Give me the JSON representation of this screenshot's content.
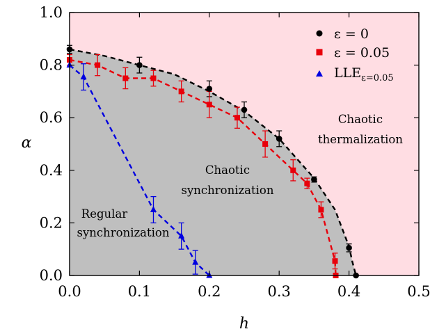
{
  "chart_data": {
    "type": "scatter",
    "xlabel": "h",
    "ylabel": "α",
    "xlim": [
      0.0,
      0.5
    ],
    "ylim": [
      0.0,
      1.0
    ],
    "xticks": [
      "0.0",
      "0.1",
      "0.2",
      "0.3",
      "0.4",
      "0.5"
    ],
    "yticks": [
      "0.0",
      "0.2",
      "0.4",
      "0.6",
      "0.8",
      "1.0"
    ],
    "grid": false,
    "legend_position": "top-right",
    "regions": [
      {
        "name": "chaotic-thermalization",
        "label": [
          "Chaotic",
          "thermalization"
        ],
        "color": "#ffdde3"
      },
      {
        "name": "chaotic-synchronization",
        "label": [
          "Chaotic",
          "synchronization"
        ],
        "color": "#bfbfbf"
      },
      {
        "name": "regular-synchronization",
        "label": [
          "Regular",
          "synchronization"
        ]
      }
    ],
    "boundary_curve": {
      "x": [
        0.0,
        0.05,
        0.1,
        0.15,
        0.2,
        0.25,
        0.3,
        0.35,
        0.38,
        0.4,
        0.405,
        0.41
      ],
      "y": [
        0.86,
        0.835,
        0.8,
        0.765,
        0.7,
        0.625,
        0.52,
        0.37,
        0.25,
        0.11,
        0.05,
        0.0
      ]
    },
    "series": [
      {
        "name": "ε = 0",
        "color": "#000000",
        "marker": "circle",
        "x": [
          0.0,
          0.1,
          0.2,
          0.25,
          0.3,
          0.35,
          0.4,
          0.41
        ],
        "y": [
          0.86,
          0.8,
          0.71,
          0.63,
          0.52,
          0.365,
          0.105,
          0.0
        ],
        "err": [
          0.015,
          0.03,
          0.03,
          0.03,
          0.03,
          0.01,
          0.015,
          0.0
        ],
        "curve_x": [
          0.0,
          0.05,
          0.1,
          0.15,
          0.2,
          0.25,
          0.3,
          0.35,
          0.38,
          0.4,
          0.405,
          0.41
        ],
        "curve_y": [
          0.86,
          0.835,
          0.8,
          0.765,
          0.7,
          0.625,
          0.52,
          0.37,
          0.25,
          0.11,
          0.05,
          0.0
        ]
      },
      {
        "name": "ε = 0.05",
        "color": "#e8000b",
        "marker": "square",
        "x": [
          0.0,
          0.04,
          0.08,
          0.12,
          0.16,
          0.2,
          0.24,
          0.28,
          0.32,
          0.34,
          0.36,
          0.38,
          0.381
        ],
        "y": [
          0.82,
          0.8,
          0.75,
          0.75,
          0.7,
          0.65,
          0.6,
          0.5,
          0.4,
          0.35,
          0.25,
          0.055,
          0.0
        ],
        "err": [
          0.02,
          0.04,
          0.04,
          0.03,
          0.04,
          0.05,
          0.04,
          0.05,
          0.04,
          0.02,
          0.03,
          0.03,
          0.0
        ],
        "curve_x": [
          0.0,
          0.04,
          0.08,
          0.12,
          0.16,
          0.2,
          0.24,
          0.28,
          0.32,
          0.34,
          0.36,
          0.38,
          0.381
        ],
        "curve_y": [
          0.82,
          0.8,
          0.75,
          0.75,
          0.7,
          0.65,
          0.6,
          0.5,
          0.4,
          0.35,
          0.25,
          0.055,
          0.0
        ]
      },
      {
        "name": "LLE",
        "name_subscript": "ε=0.05",
        "color": "#0000e0",
        "marker": "triangle",
        "x": [
          0.0,
          0.02,
          0.12,
          0.16,
          0.18,
          0.2
        ],
        "y": [
          0.8,
          0.755,
          0.25,
          0.15,
          0.05,
          0.0
        ],
        "err": [
          0.0,
          0.05,
          0.05,
          0.05,
          0.045,
          0.0
        ],
        "curve_x": [
          0.0,
          0.02,
          0.12,
          0.16,
          0.18,
          0.2
        ],
        "curve_y": [
          0.8,
          0.755,
          0.25,
          0.15,
          0.05,
          0.0
        ]
      }
    ]
  }
}
